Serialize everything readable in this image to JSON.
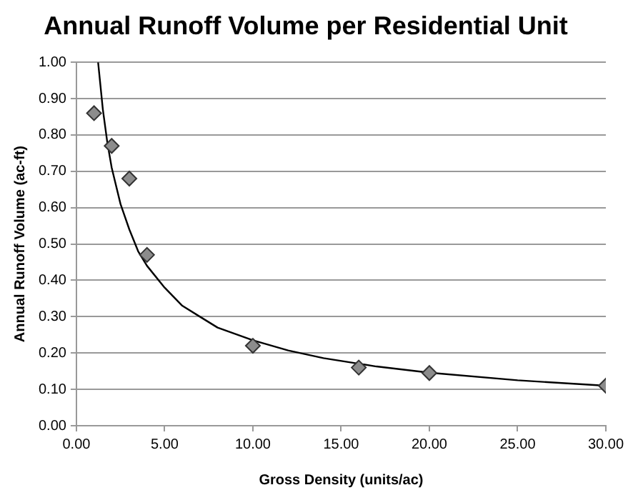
{
  "chart_data": {
    "type": "scatter",
    "title": "Annual Runoff Volume per Residential Unit",
    "xlabel": "Gross Density (units/ac)",
    "ylabel": "Annual Runoff Volume (ac-ft)",
    "xlim": [
      0,
      30
    ],
    "xticks": [
      {
        "value": 0,
        "label": "0.00"
      },
      {
        "value": 5,
        "label": "5.00"
      },
      {
        "value": 10,
        "label": "10.00"
      },
      {
        "value": 15,
        "label": "15.00"
      },
      {
        "value": 20,
        "label": "20.00"
      },
      {
        "value": 25,
        "label": "25.00"
      },
      {
        "value": 30,
        "label": "30.00"
      }
    ],
    "ylim": [
      0,
      1
    ],
    "yticks": [
      {
        "value": 0,
        "label": "0.00"
      },
      {
        "value": 0.1,
        "label": "0.10"
      },
      {
        "value": 0.2,
        "label": "0.20"
      },
      {
        "value": 0.3,
        "label": "0.30"
      },
      {
        "value": 0.4,
        "label": "0.40"
      },
      {
        "value": 0.5,
        "label": "0.50"
      },
      {
        "value": 0.6,
        "label": "0.60"
      },
      {
        "value": 0.7,
        "label": "0.70"
      },
      {
        "value": 0.8,
        "label": "0.80"
      },
      {
        "value": 0.9,
        "label": "0.90"
      },
      {
        "value": 1,
        "label": "1.00"
      }
    ],
    "grid": "y",
    "marker": "diamond",
    "series": [
      {
        "type": "line",
        "color": "#000000",
        "marker": "none",
        "x": [
          1.23,
          1.5,
          1.75,
          2,
          2.5,
          3,
          3.5,
          4,
          5,
          6,
          7,
          8,
          10,
          12,
          14,
          17,
          20,
          25,
          30
        ],
        "values": [
          1.0,
          0.87,
          0.78,
          0.71,
          0.61,
          0.54,
          0.48,
          0.44,
          0.38,
          0.33,
          0.3,
          0.27,
          0.235,
          0.207,
          0.186,
          0.163,
          0.146,
          0.125,
          0.11
        ]
      },
      {
        "type": "scatter",
        "color": "#8c8c8c",
        "x": [
          1,
          2,
          3,
          4,
          10,
          16,
          20,
          30
        ],
        "values": [
          0.86,
          0.77,
          0.68,
          0.47,
          0.22,
          0.16,
          0.145,
          0.11
        ]
      }
    ]
  }
}
